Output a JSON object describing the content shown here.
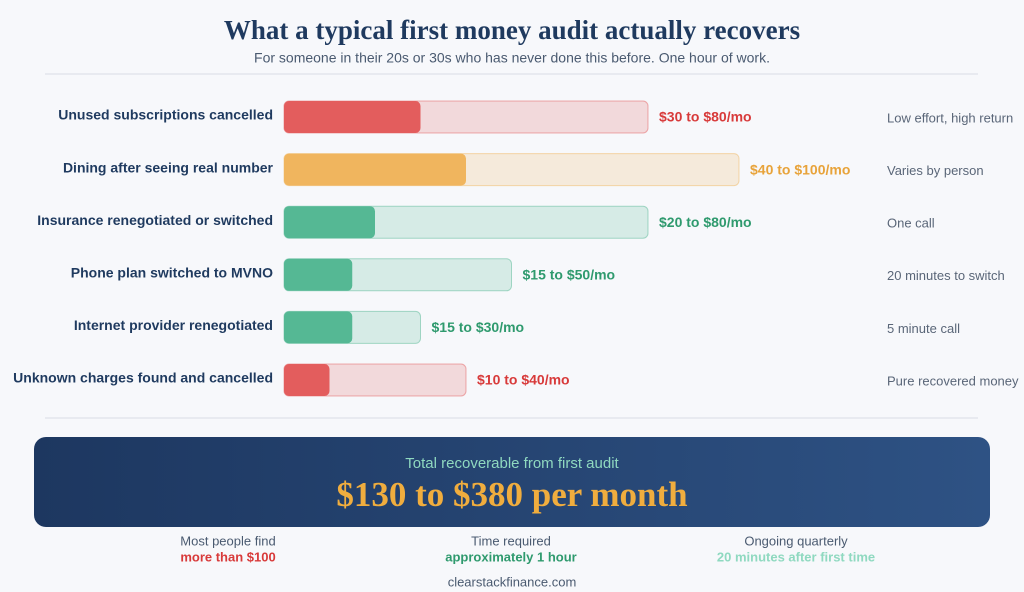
{
  "chart_data": {
    "type": "range-bar",
    "title": "What a typical first money audit actually recovers",
    "subtitle": "For someone in their 20s or 30s who has never done this before. One hour of work.",
    "categories": [
      "Unused subscriptions cancelled",
      "Dining after seeing real number",
      "Insurance renegotiated or switched",
      "Phone plan switched to MVNO",
      "Internet provider renegotiated",
      "Unknown charges found and cancelled"
    ],
    "low": [
      30,
      40,
      20,
      15,
      15,
      10
    ],
    "high": [
      80,
      100,
      80,
      50,
      30,
      40
    ],
    "value_labels": [
      "$30 to $80/mo",
      "$40 to $100/mo",
      "$20 to $80/mo",
      "$15 to $50/mo",
      "$15 to $30/mo",
      "$10 to $40/mo"
    ],
    "colors": [
      "#e35d5d",
      "#f0b55e",
      "#55b894",
      "#55b894",
      "#55b894",
      "#e35d5d"
    ],
    "notes": [
      "Low effort, high return",
      "Varies by person",
      "One call",
      "20 minutes to switch",
      "5 minute call",
      "Pure recovered money"
    ]
  },
  "summary": {
    "label": "Total recoverable from first audit",
    "value": "$130 to $380 per month"
  },
  "stats": [
    {
      "label": "Most people find",
      "value": "more than $100",
      "color": "#d83a3a"
    },
    {
      "label": "Time required",
      "value": "approximately 1 hour",
      "color": "#2f9a6e"
    },
    {
      "label": "Ongoing quarterly",
      "value": "20 minutes after first time",
      "color": "#8fd9c0"
    }
  ],
  "footer": "clearstackfinance.com"
}
